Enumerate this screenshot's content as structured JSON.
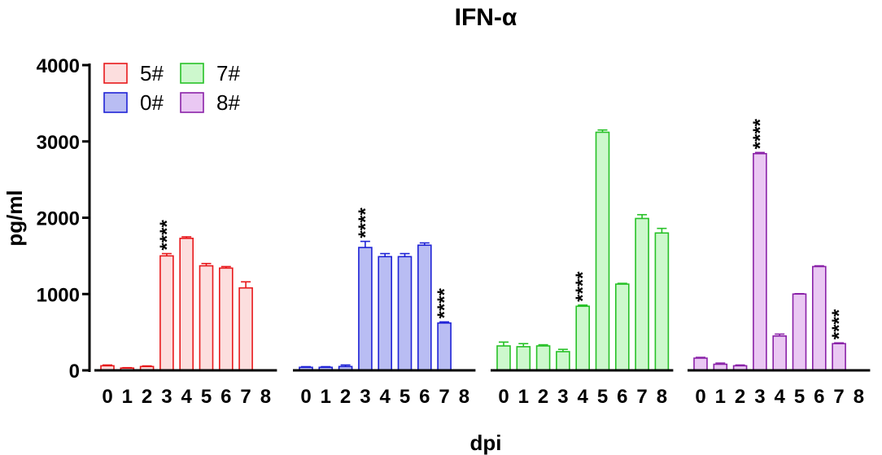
{
  "chart_data": {
    "type": "bar",
    "title": "IFN-α",
    "xlabel": "dpi",
    "ylabel": "pg/ml",
    "ylim": [
      0,
      4000
    ],
    "yticks": [
      "0",
      "1000",
      "2000",
      "3000",
      "4000"
    ],
    "categories": [
      "0",
      "1",
      "2",
      "3",
      "4",
      "5",
      "6",
      "7",
      "8"
    ],
    "legend_position": "top-left",
    "series": [
      {
        "name": "5#",
        "stroke": "#e8191c",
        "fill": "#fcdede",
        "values": [
          60,
          30,
          50,
          1500,
          1730,
          1370,
          1340,
          1080,
          0
        ],
        "errors": [
          10,
          5,
          8,
          30,
          20,
          30,
          20,
          80,
          0
        ],
        "significance": [
          "",
          "",
          "",
          "****",
          "",
          "",
          "",
          "",
          ""
        ]
      },
      {
        "name": "0#",
        "stroke": "#1f23d6",
        "fill": "#b9bdf3",
        "values": [
          40,
          40,
          50,
          1610,
          1490,
          1490,
          1640,
          620,
          0
        ],
        "errors": [
          8,
          8,
          20,
          80,
          40,
          40,
          30,
          15,
          0
        ],
        "significance": [
          "",
          "",
          "",
          "****",
          "",
          "",
          "",
          "****",
          ""
        ]
      },
      {
        "name": "7#",
        "stroke": "#27c127",
        "fill": "#cdf8cd",
        "values": [
          320,
          310,
          320,
          245,
          840,
          3120,
          1130,
          1990,
          1800
        ],
        "errors": [
          50,
          40,
          15,
          30,
          15,
          30,
          10,
          50,
          60
        ],
        "significance": [
          "",
          "",
          "",
          "",
          "****",
          "",
          "",
          "",
          ""
        ]
      },
      {
        "name": "8#",
        "stroke": "#8a22a8",
        "fill": "#eac8f3",
        "values": [
          160,
          80,
          60,
          2840,
          450,
          1000,
          1360,
          350,
          0
        ],
        "errors": [
          10,
          15,
          10,
          15,
          25,
          5,
          10,
          10,
          0
        ],
        "significance": [
          "",
          "",
          "",
          "****",
          "",
          "",
          "",
          "****",
          ""
        ]
      }
    ]
  }
}
